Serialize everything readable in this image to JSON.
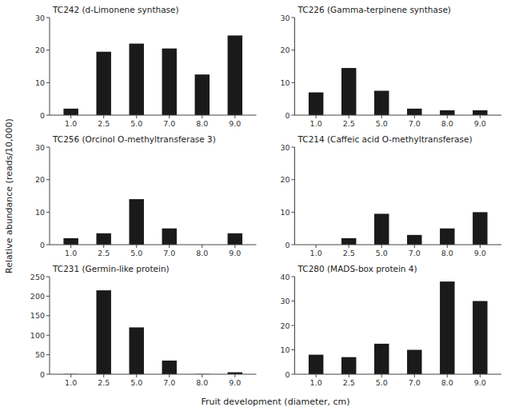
{
  "chart_data": [
    {
      "type": "bar",
      "title": "TC242 (d-Limonene synthase)",
      "categories": [
        "1.0",
        "2.5",
        "5.0",
        "7.0",
        "8.0",
        "9.0"
      ],
      "values": [
        2,
        19.5,
        22,
        20.5,
        12.5,
        24.5
      ],
      "color": "#1a1a1a",
      "ylim": [
        0,
        30
      ],
      "yticks": [
        0,
        10,
        20,
        30
      ],
      "grid": false
    },
    {
      "type": "bar",
      "title": "TC226 (Gamma-terpinene synthase)",
      "categories": [
        "1.0",
        "2.5",
        "5.0",
        "7.0",
        "8.0",
        "9.0"
      ],
      "values": [
        7,
        14.5,
        7.5,
        2,
        1.5,
        1.5
      ],
      "color": "#1a1a1a",
      "ylim": [
        0,
        30
      ],
      "yticks": [
        0,
        10,
        20,
        30
      ],
      "grid": false
    },
    {
      "type": "bar",
      "title": "TC256 (Orcinol O-methyltransferase 3)",
      "categories": [
        "1.0",
        "2.5",
        "5.0",
        "7.0",
        "8.0",
        "9.0"
      ],
      "values": [
        2,
        3.5,
        14,
        5,
        0,
        3.5
      ],
      "color": "#1a1a1a",
      "ylim": [
        0,
        30
      ],
      "yticks": [
        0,
        10,
        20,
        30
      ],
      "grid": false
    },
    {
      "type": "bar",
      "title": "TC214 (Caffeic acid O-methyltransferase)",
      "categories": [
        "1.0",
        "2.5",
        "5.0",
        "7.0",
        "8.0",
        "9.0"
      ],
      "values": [
        0,
        2,
        9.5,
        3,
        5,
        10
      ],
      "color": "#1a1a1a",
      "ylim": [
        0,
        30
      ],
      "yticks": [
        0,
        10,
        20,
        30
      ],
      "grid": false
    },
    {
      "type": "bar",
      "title": "TC231 (Germin-like protein)",
      "categories": [
        "1.0",
        "2.5",
        "5.0",
        "7.0",
        "8.0",
        "9.0"
      ],
      "values": [
        0.5,
        215,
        120,
        35,
        0.5,
        5
      ],
      "color": "#1a1a1a",
      "ylim": [
        0,
        250
      ],
      "yticks": [
        0,
        50,
        100,
        150,
        200,
        250
      ],
      "grid": false
    },
    {
      "type": "bar",
      "title": "TC280 (MADS-box protein 4)",
      "categories": [
        "1.0",
        "2.5",
        "5.0",
        "7.0",
        "8.0",
        "9.0"
      ],
      "values": [
        8,
        7,
        12.5,
        10,
        38,
        30
      ],
      "color": "#1a1a1a",
      "ylim": [
        0,
        40
      ],
      "yticks": [
        0,
        10,
        20,
        30,
        40
      ],
      "grid": false
    }
  ],
  "xlabel": "Fruit development (diameter, cm)",
  "ylabel": "Relative abundance (reads/10,000)"
}
